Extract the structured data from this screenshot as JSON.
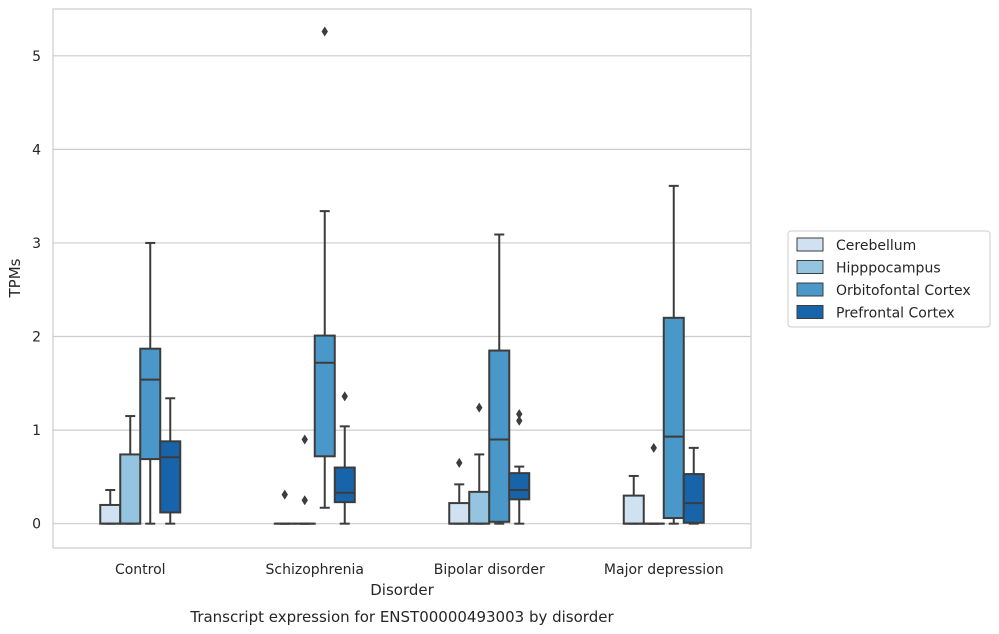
{
  "chart_data": {
    "type": "box",
    "caption": "Transcript expression for ENST00000493003 by disorder",
    "xlabel": "Disorder",
    "ylabel": "TPMs",
    "ylim": [
      -0.26,
      5.5
    ],
    "yticks": [
      0,
      1,
      2,
      3,
      4,
      5
    ],
    "grid": "horizontal",
    "legend_position": "right",
    "categories": [
      "Control",
      "Schizophrenia",
      "Bipolar disorder",
      "Major depression"
    ],
    "series": [
      {
        "name": "Cerebellum",
        "color": "#d0e1f2",
        "boxes": [
          {
            "whislo": 0,
            "q1": 0,
            "med": 0,
            "q3": 0.2,
            "whishi": 0.36,
            "fliers": []
          },
          {
            "whislo": 0,
            "q1": 0,
            "med": 0,
            "q3": 0,
            "whishi": 0,
            "fliers": [
              0.31
            ]
          },
          {
            "whislo": 0,
            "q1": 0,
            "med": 0,
            "q3": 0.22,
            "whishi": 0.42,
            "fliers": [
              0.65
            ]
          },
          {
            "whislo": 0,
            "q1": 0,
            "med": 0,
            "q3": 0.3,
            "whishi": 0.51,
            "fliers": []
          }
        ]
      },
      {
        "name": "Hipppocampus",
        "color": "#94c4df",
        "boxes": [
          {
            "whislo": 0,
            "q1": 0,
            "med": 0,
            "q3": 0.74,
            "whishi": 1.15,
            "fliers": []
          },
          {
            "whislo": 0,
            "q1": 0,
            "med": 0,
            "q3": 0,
            "whishi": 0,
            "fliers": [
              0.25,
              0.9
            ]
          },
          {
            "whislo": 0,
            "q1": 0,
            "med": 0,
            "q3": 0.34,
            "whishi": 0.74,
            "fliers": [
              1.24
            ]
          },
          {
            "whislo": 0,
            "q1": 0,
            "med": 0,
            "q3": 0,
            "whishi": 0,
            "fliers": [
              0.81
            ]
          }
        ]
      },
      {
        "name": "Orbitofontal Cortex",
        "color": "#4a98c9",
        "boxes": [
          {
            "whislo": 0,
            "q1": 0.69,
            "med": 1.54,
            "q3": 1.87,
            "whishi": 3.0,
            "fliers": []
          },
          {
            "whislo": 0.17,
            "q1": 0.72,
            "med": 1.72,
            "q3": 2.01,
            "whishi": 3.34,
            "fliers": [
              5.26
            ]
          },
          {
            "whislo": 0,
            "q1": 0.02,
            "med": 0.9,
            "q3": 1.85,
            "whishi": 3.09,
            "fliers": []
          },
          {
            "whislo": 0,
            "q1": 0.06,
            "med": 0.93,
            "q3": 2.2,
            "whishi": 3.61,
            "fliers": []
          }
        ]
      },
      {
        "name": "Prefrontal Cortex",
        "color": "#1764ab",
        "boxes": [
          {
            "whislo": 0,
            "q1": 0.12,
            "med": 0.71,
            "q3": 0.88,
            "whishi": 1.34,
            "fliers": []
          },
          {
            "whislo": 0,
            "q1": 0.23,
            "med": 0.33,
            "q3": 0.6,
            "whishi": 1.04,
            "fliers": [
              1.36
            ]
          },
          {
            "whislo": 0,
            "q1": 0.26,
            "med": 0.36,
            "q3": 0.54,
            "whishi": 0.61,
            "fliers": [
              1.1,
              1.17
            ]
          },
          {
            "whislo": 0,
            "q1": 0.01,
            "med": 0.22,
            "q3": 0.53,
            "whishi": 0.81,
            "fliers": []
          }
        ]
      }
    ]
  }
}
